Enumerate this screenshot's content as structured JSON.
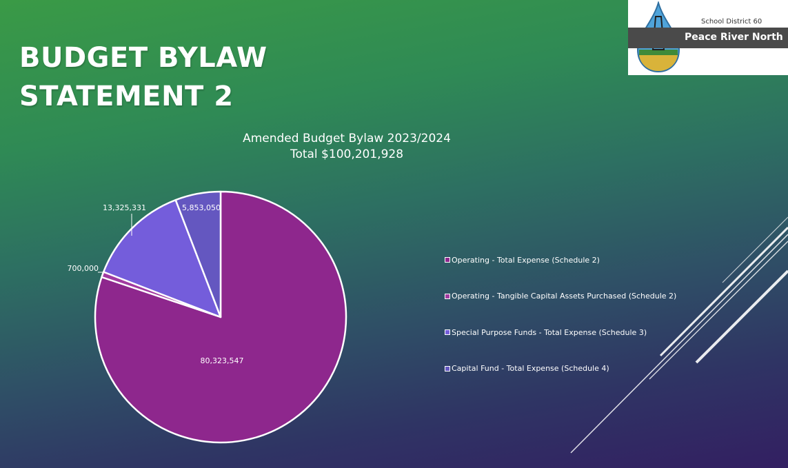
{
  "slide": {
    "title_line1": "BUDGET BYLAW",
    "title_line2": "STATEMENT 2"
  },
  "logo": {
    "subtitle": "School District 60",
    "name": "Peace River North"
  },
  "chart_data": {
    "type": "pie",
    "title": "Amended Budget Bylaw 2023/2024",
    "subtitle": "Total $100,201,928",
    "slices": [
      {
        "label": "Operating - Total Expense (Schedule 2)",
        "value": 80323547,
        "value_label": "80,323,547",
        "color": "#8e278d"
      },
      {
        "label": "Operating - Tangible Capital Assets Purchased (Schedule 2)",
        "value": 700000,
        "value_label": "700,000",
        "color": "#a13aa0"
      },
      {
        "label": "Special Purpose Funds - Total Expense (Schedule 3)",
        "value": 13325331,
        "value_label": "13,325,331",
        "color": "#745ddb"
      },
      {
        "label": "Capital Fund - Total Expense (Schedule 4)",
        "value": 5853050,
        "value_label": "5,853,050",
        "color": "#6457c0"
      }
    ],
    "start_angle": "12 o'clock",
    "direction": "clockwise",
    "legend_position": "right"
  }
}
